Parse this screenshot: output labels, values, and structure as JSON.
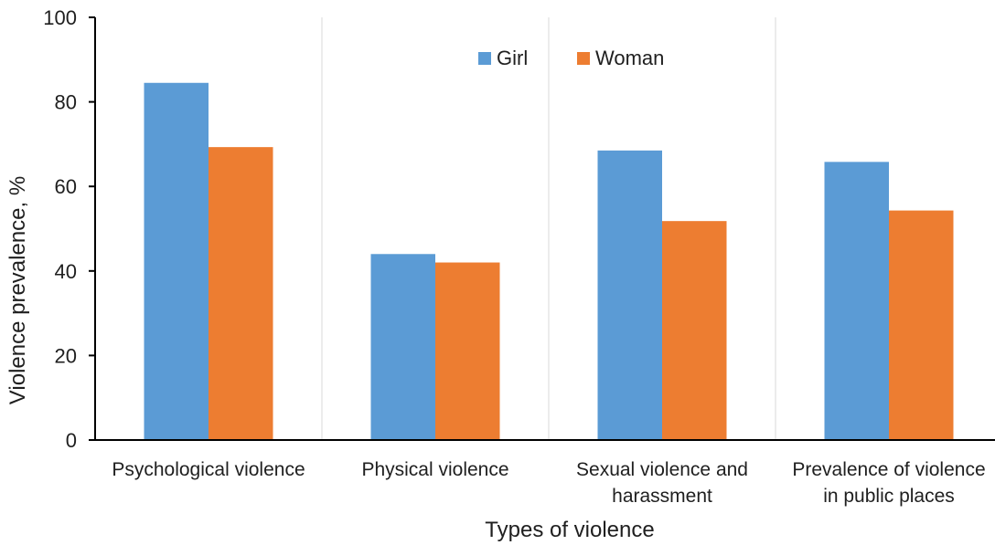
{
  "chart_data": {
    "type": "bar",
    "categories": [
      [
        "Psychological violence"
      ],
      [
        "Physical violence"
      ],
      [
        "Sexual violence and",
        "harassment"
      ],
      [
        "Prevalence of violence",
        "in public places"
      ]
    ],
    "series": [
      {
        "name": "Girl",
        "values": [
          84.5,
          44.0,
          68.5,
          65.8
        ],
        "color": "#5b9bd5"
      },
      {
        "name": "Woman",
        "values": [
          69.3,
          42.0,
          51.8,
          54.3
        ],
        "color": "#ed7d31"
      }
    ],
    "xlabel": "Types of violence",
    "ylabel": "Violence prevalence, %",
    "ylim": [
      0,
      100
    ],
    "yticks": [
      "0",
      "20",
      "40",
      "60",
      "80",
      "100"
    ],
    "grid": "vertical category separators",
    "legend_position": "top-center"
  }
}
